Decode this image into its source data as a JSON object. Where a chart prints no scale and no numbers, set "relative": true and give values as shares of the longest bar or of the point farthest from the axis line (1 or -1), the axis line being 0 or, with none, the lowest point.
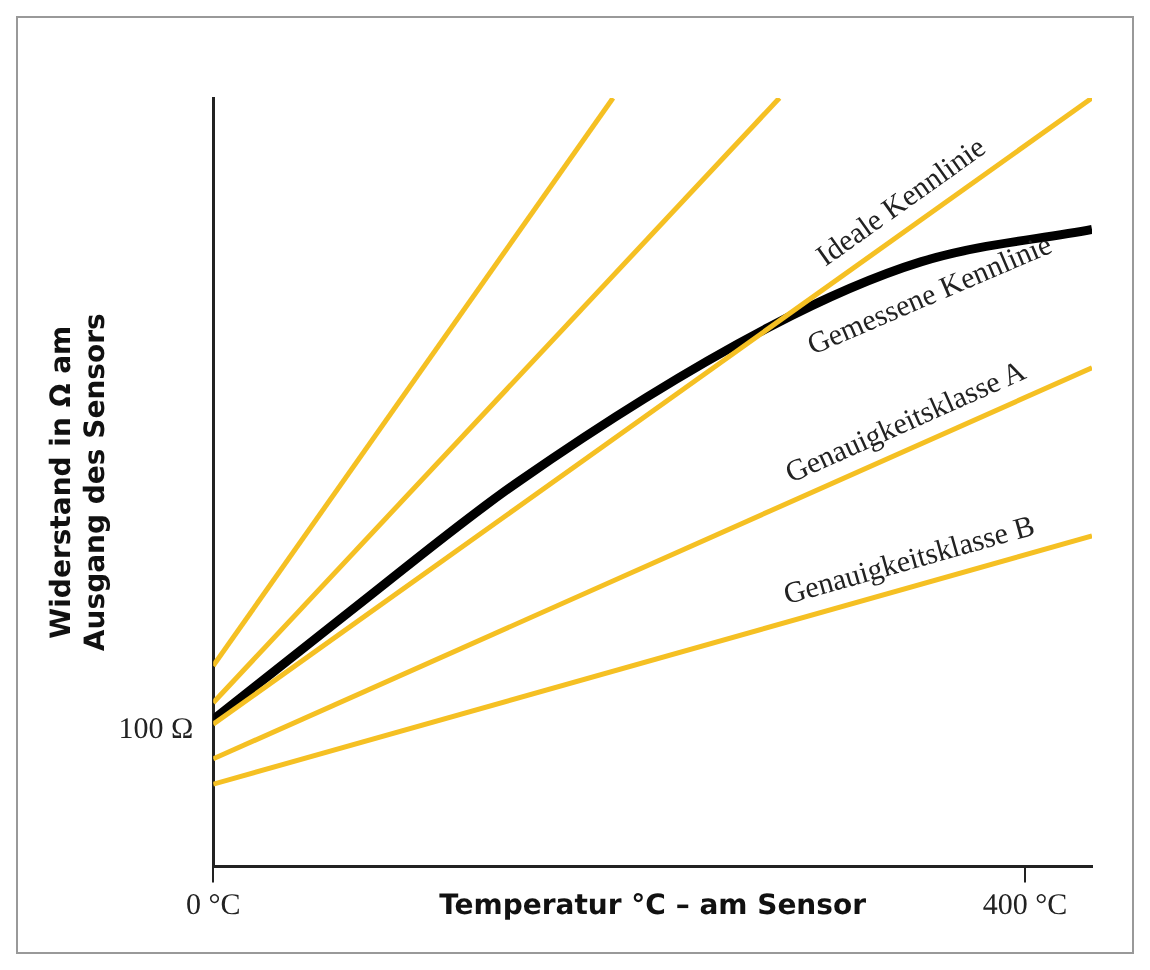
{
  "chart_data": {
    "type": "line",
    "relative": true,
    "xlabel": "Temperatur °C – am Sensor",
    "ylabel": "Widerstand in Ω am\nAusgang des Sensors",
    "xlim": [
      0,
      433
    ],
    "xticks": [
      {
        "value": 0,
        "label": "0 °C"
      },
      {
        "value": 400,
        "label": "400 °C"
      }
    ],
    "grid": false,
    "legend": false,
    "marker": "none",
    "line_style": "solid",
    "annotations": [
      {
        "text": "100 Ω",
        "x": 0,
        "y": 0.177
      }
    ],
    "series": [
      {
        "color": "#f5c023",
        "x": [
          0,
          197
        ],
        "values": [
          0.261,
          1.0
        ]
      },
      {
        "color": "#f5c023",
        "x": [
          0,
          279
        ],
        "values": [
          0.213,
          1.0
        ]
      },
      {
        "name": "Ideale Kennlinie",
        "color": "#f5c023",
        "x": [
          0,
          433
        ],
        "values": [
          0.185,
          1.0
        ]
      },
      {
        "name": "Gemessene Kennlinie",
        "color": "#000000",
        "x": [
          0,
          67,
          150,
          274,
          349,
          433
        ],
        "values": [
          0.191,
          0.331,
          0.5,
          0.702,
          0.787,
          0.829
        ]
      },
      {
        "name": "Genauigkeitsklasse A",
        "color": "#f5c023",
        "x": [
          0,
          433
        ],
        "values": [
          0.14,
          0.649
        ]
      },
      {
        "name": "Genauigkeitsklasse B",
        "color": "#f5c023",
        "x": [
          0,
          433
        ],
        "values": [
          0.107,
          0.43
        ]
      }
    ]
  }
}
